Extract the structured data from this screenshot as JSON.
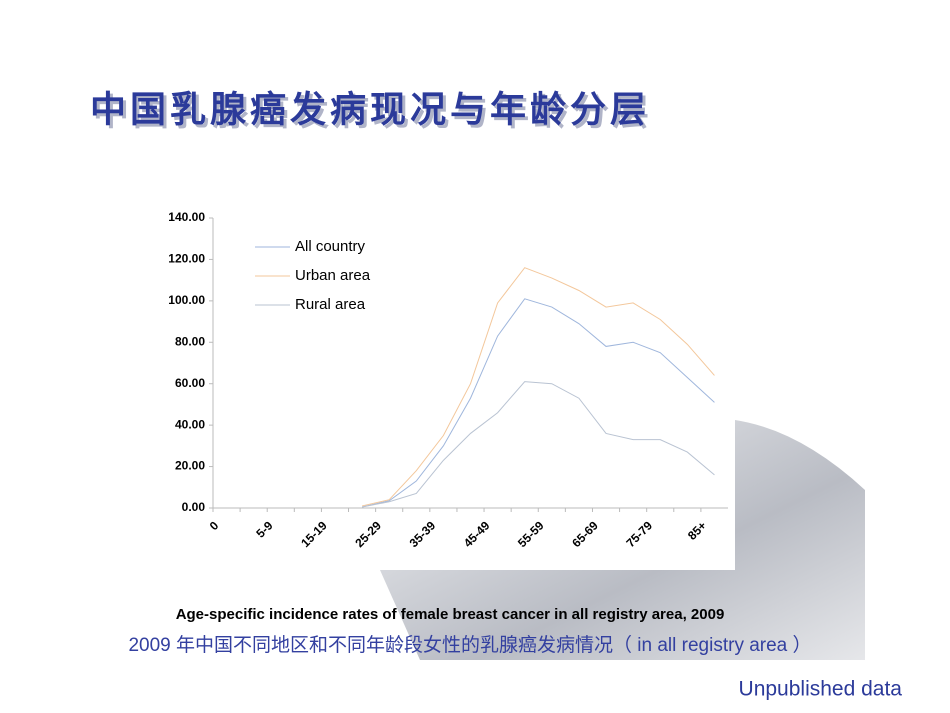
{
  "chart_data": {
    "type": "line",
    "title": "中国乳腺癌发病现况与年龄分层",
    "caption": "Age-specific incidence rates of female breast cancer in all registry area, 2009",
    "subtitle": "2009 年中国不同地区和不同年龄段女性的乳腺癌发病情况（  in all registry area ）",
    "source": "Unpublished data",
    "categories": [
      "0",
      null,
      "5-9",
      null,
      "15-19",
      null,
      "25-29",
      null,
      "35-39",
      null,
      "45-49",
      null,
      "55-59",
      null,
      "65-69",
      null,
      "75-79",
      null,
      "85+"
    ],
    "series": [
      {
        "name": "All country",
        "color": "#9fb6dc",
        "values": [
          null,
          null,
          null,
          null,
          null,
          0.5,
          3.5,
          13,
          30,
          53,
          83,
          101,
          97,
          89,
          78,
          80,
          75,
          63,
          51
        ]
      },
      {
        "name": "Urban area",
        "color": "#f3c79b",
        "values": [
          null,
          null,
          null,
          null,
          null,
          1,
          4,
          18,
          35,
          60,
          99,
          116,
          111,
          105,
          97,
          99,
          91,
          79,
          64
        ]
      },
      {
        "name": "Rural area",
        "color": "#b9c3d2",
        "values": [
          null,
          null,
          null,
          null,
          null,
          0.5,
          3,
          7,
          23,
          36,
          46,
          61,
          60,
          53,
          36,
          33,
          33,
          27,
          16
        ]
      }
    ],
    "ylim": [
      0,
      140
    ],
    "yticks": [
      {
        "value": 0,
        "label": "0.00"
      },
      {
        "value": 20,
        "label": "20.00"
      },
      {
        "value": 40,
        "label": "40.00"
      },
      {
        "value": 60,
        "label": "60.00"
      },
      {
        "value": 80,
        "label": "80.00"
      },
      {
        "value": 100,
        "label": "100.00"
      },
      {
        "value": 120,
        "label": "120.00"
      },
      {
        "value": 140,
        "label": "140.00"
      }
    ],
    "legend": "upper-left",
    "grid": false
  }
}
